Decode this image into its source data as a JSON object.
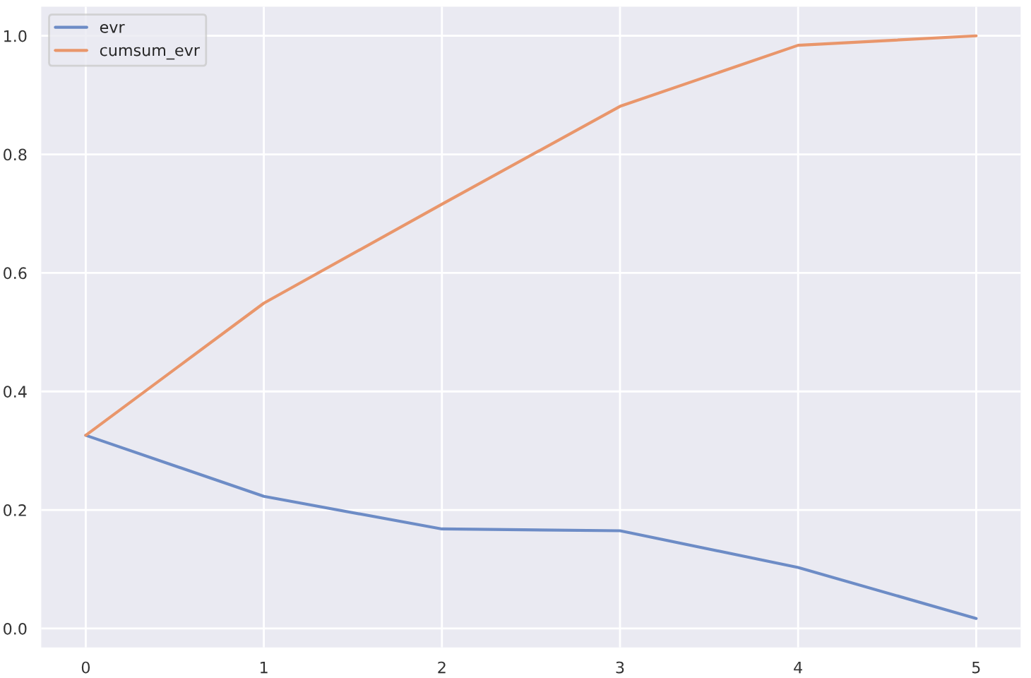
{
  "chart_data": {
    "type": "line",
    "x": [
      0,
      1,
      2,
      3,
      4,
      5
    ],
    "series": [
      {
        "name": "evr",
        "color": "#6d8cc6",
        "values": [
          0.326,
          0.223,
          0.168,
          0.165,
          0.103,
          0.017
        ]
      },
      {
        "name": "cumsum_evr",
        "color": "#e9966b",
        "values": [
          0.326,
          0.549,
          0.716,
          0.881,
          0.984,
          1.0
        ]
      }
    ],
    "xlim": [
      -0.25,
      5.25
    ],
    "ylim": [
      -0.032,
      1.049
    ],
    "xticks": [
      0,
      1,
      2,
      3,
      4,
      5
    ],
    "yticks": [
      {
        "value": 0,
        "label": "0.0"
      },
      {
        "value": 0.2,
        "label": "0.2"
      },
      {
        "value": 0.4,
        "label": "0.4"
      },
      {
        "value": 0.6,
        "label": "0.6"
      },
      {
        "value": 0.8,
        "label": "0.8"
      },
      {
        "value": 1.0,
        "label": "1.0"
      }
    ],
    "grid": true,
    "legend": "top left",
    "marker": "none",
    "line_style": "solid"
  }
}
